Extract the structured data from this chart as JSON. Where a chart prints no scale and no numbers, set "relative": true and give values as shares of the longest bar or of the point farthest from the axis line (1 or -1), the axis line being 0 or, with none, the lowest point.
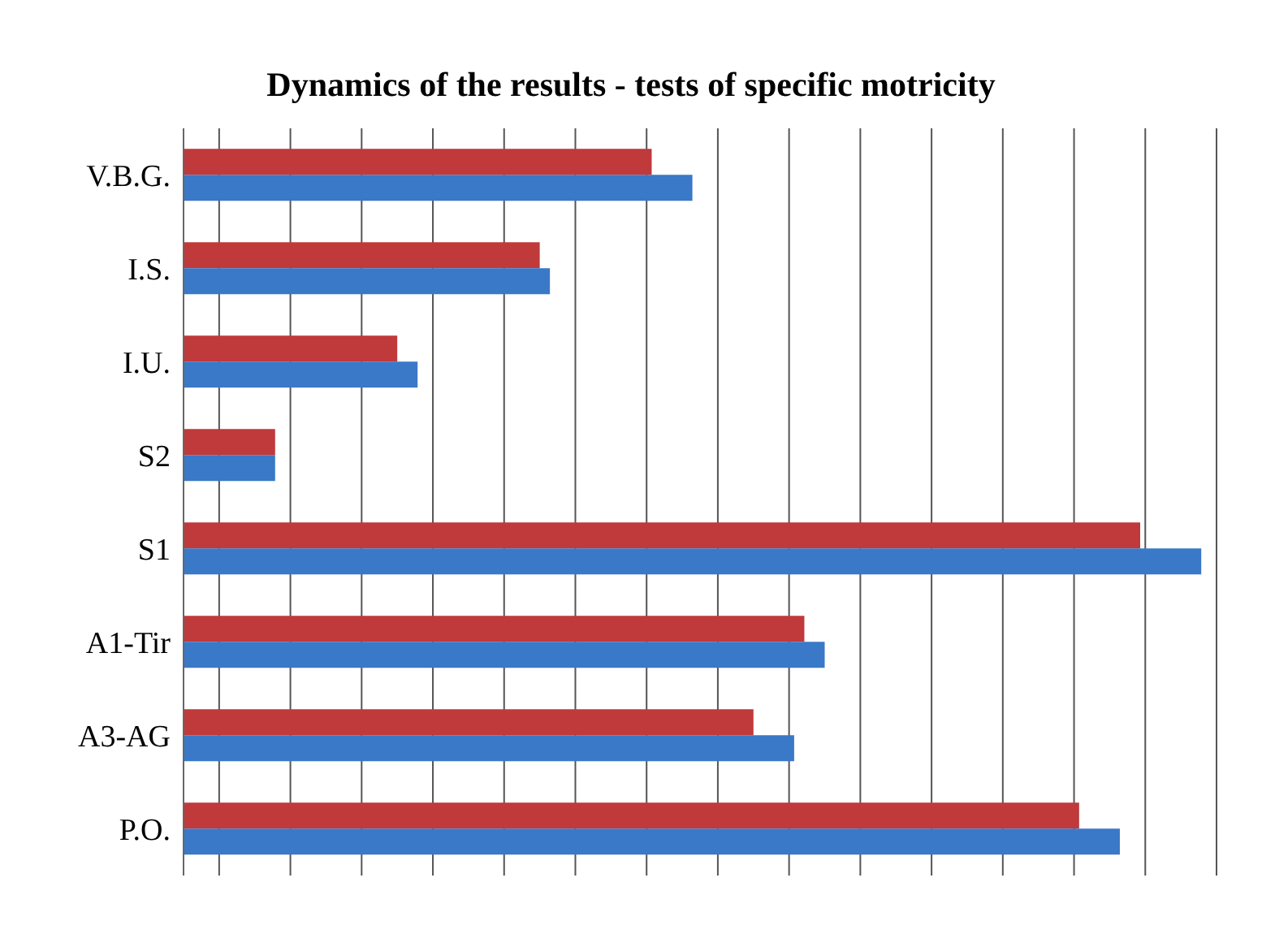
{
  "chart_data": {
    "type": "bar",
    "orientation": "horizontal",
    "relative": true,
    "title": "Dynamics of the results - tests of specific motricity",
    "categories": [
      "V.B.G.",
      "I.S.",
      "I.U.",
      "S2",
      "S1",
      "A1-Tir",
      "A3-AG",
      "P.O."
    ],
    "series": [
      {
        "color": "#c0393b",
        "values": [
          0.46,
          0.35,
          0.21,
          0.09,
          0.94,
          0.61,
          0.56,
          0.88
        ]
      },
      {
        "color": "#3a78c8",
        "values": [
          0.5,
          0.36,
          0.23,
          0.09,
          1,
          0.63,
          0.6,
          0.92
        ]
      }
    ],
    "grid": "x",
    "legend": false
  }
}
